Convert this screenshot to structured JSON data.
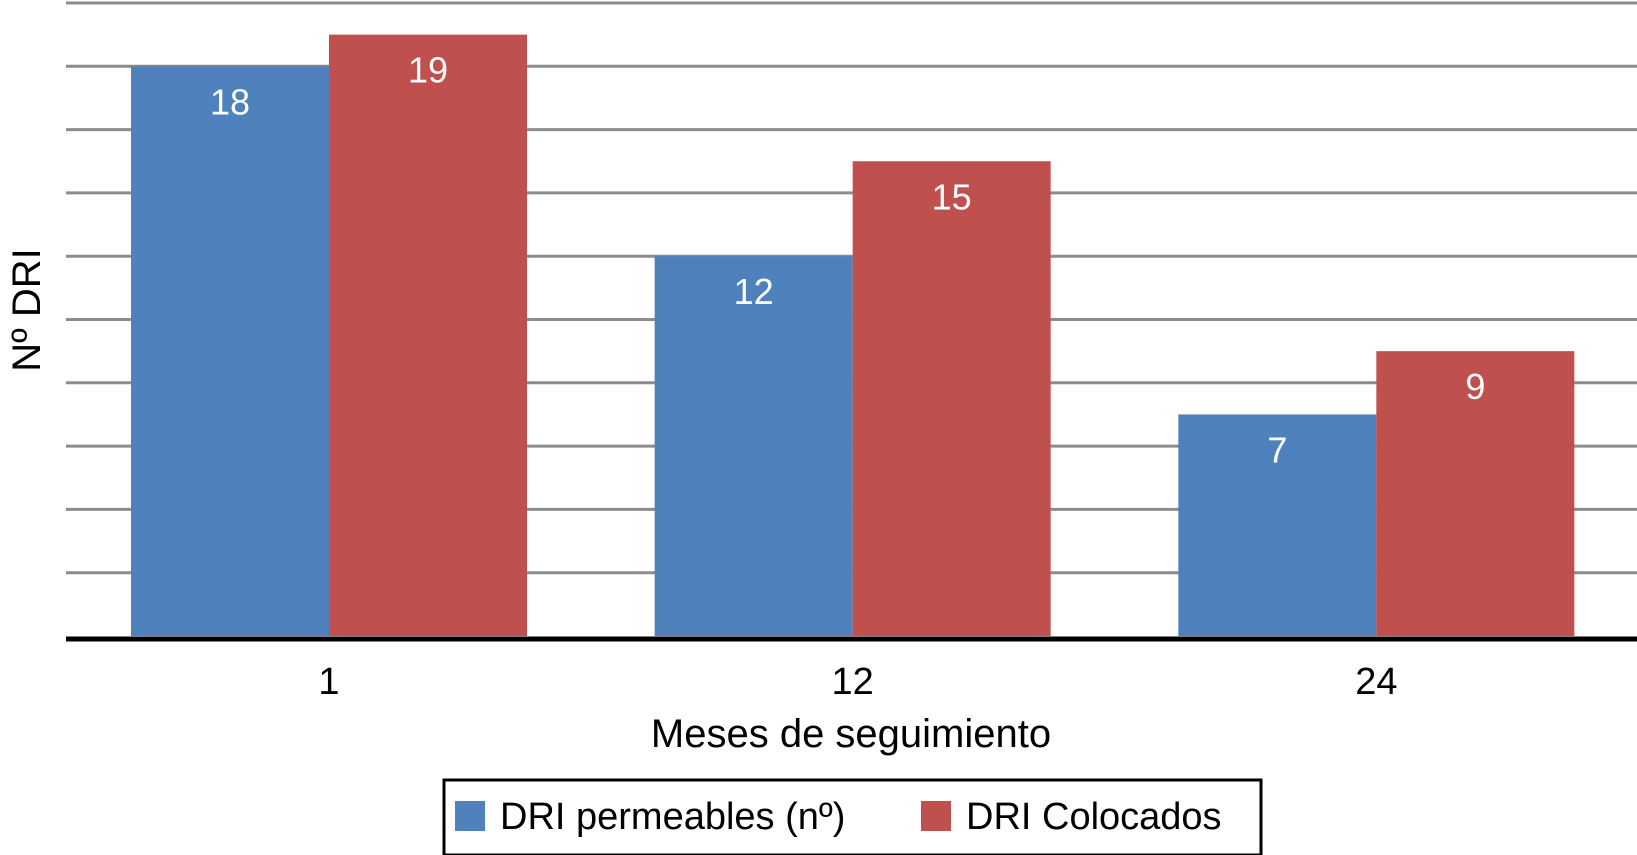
{
  "chart_data": {
    "type": "bar",
    "categories": [
      "1",
      "12",
      "24"
    ],
    "series": [
      {
        "name": "DRI permeables (nº)",
        "values": [
          18,
          12,
          7
        ],
        "color": "#4F81BD"
      },
      {
        "name": "DRI Colocados",
        "values": [
          19,
          15,
          9
        ],
        "color": "#C0504D"
      }
    ],
    "xlabel": "Meses de seguimiento",
    "ylabel": "Nº DRI",
    "ylim": [
      0,
      20
    ],
    "grid": true,
    "legend": "bottom",
    "data_labels": true
  }
}
